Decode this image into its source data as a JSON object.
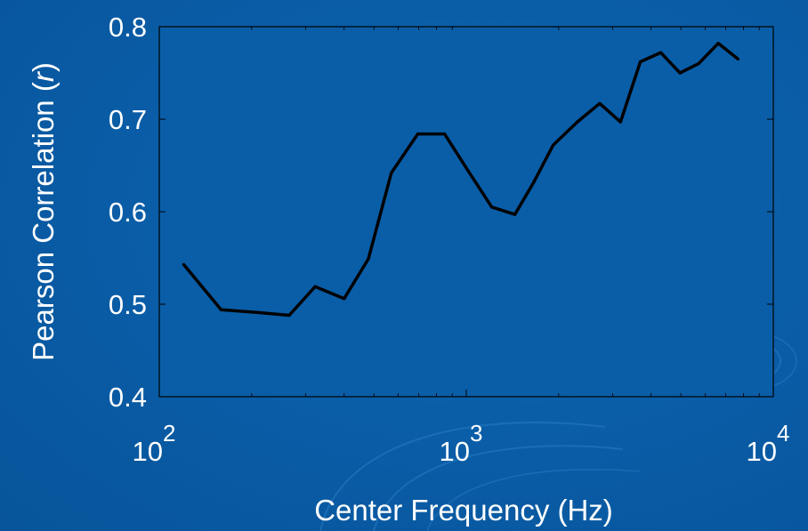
{
  "chart_data": {
    "type": "line",
    "title": "",
    "xlabel": "Center Frequency (Hz)",
    "ylabel_main": "Pearson Correlation (",
    "ylabel_var": "r",
    "ylabel_close": ")",
    "xscale": "log",
    "xlim": [
      100,
      10000
    ],
    "ylim": [
      0.4,
      0.8
    ],
    "x_ticks": [
      {
        "base": "10",
        "exp": "2"
      },
      {
        "base": "10",
        "exp": "3"
      },
      {
        "base": "10",
        "exp": "4"
      }
    ],
    "y_ticks": [
      "0.4",
      "0.5",
      "0.6",
      "0.7",
      "0.8"
    ],
    "grid": false,
    "legend": "none",
    "colors": {
      "line": "#000000",
      "plot_bg": "#0a5ea8",
      "text": "#ffffff"
    },
    "series": [
      {
        "x": [
          120,
          159,
          210,
          265,
          322,
          400,
          480,
          570,
          695,
          850,
          1010,
          1210,
          1440,
          1660,
          1920,
          2300,
          2720,
          3180,
          3690,
          4300,
          4970,
          5710,
          6620,
          7680
        ],
        "y": [
          0.543,
          0.494,
          0.491,
          0.488,
          0.519,
          0.506,
          0.549,
          0.642,
          0.684,
          0.684,
          0.645,
          0.605,
          0.597,
          0.632,
          0.672,
          0.697,
          0.717,
          0.697,
          0.762,
          0.772,
          0.75,
          0.76,
          0.782,
          0.765
        ]
      }
    ]
  }
}
